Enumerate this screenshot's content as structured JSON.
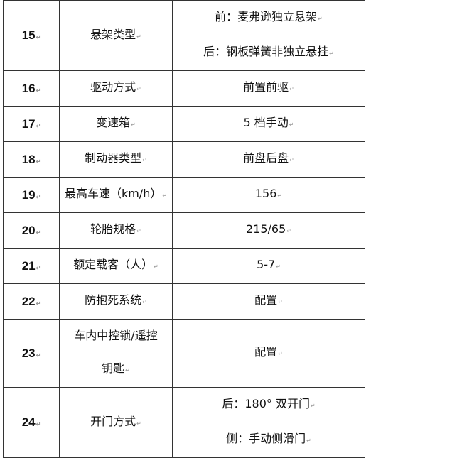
{
  "rows": [
    {
      "no": "15",
      "name": [
        "悬架类型"
      ],
      "value": [
        "前：麦弗逊独立悬架",
        "后：钢板弹簧非独立悬挂"
      ]
    },
    {
      "no": "16",
      "name": [
        "驱动方式"
      ],
      "value": [
        "前置前驱"
      ]
    },
    {
      "no": "17",
      "name": [
        "变速箱"
      ],
      "value": [
        "5 档手动"
      ]
    },
    {
      "no": "18",
      "name": [
        "制动器类型"
      ],
      "value": [
        "前盘后盘"
      ]
    },
    {
      "no": "19",
      "name": [
        "最高车速（km/h）"
      ],
      "value": [
        "156"
      ]
    },
    {
      "no": "20",
      "name": [
        "轮胎规格"
      ],
      "value": [
        "215/65"
      ]
    },
    {
      "no": "21",
      "name": [
        "额定载客（人）"
      ],
      "value": [
        "5-7"
      ]
    },
    {
      "no": "22",
      "name": [
        "防抱死系统"
      ],
      "value": [
        "配置"
      ]
    },
    {
      "no": "23",
      "name": [
        "车内中控锁/遥控",
        "钥匙"
      ],
      "value": [
        "配置"
      ]
    },
    {
      "no": "24",
      "name": [
        "开门方式"
      ],
      "value": [
        "后：180° 双开门",
        "侧：手动侧滑门"
      ]
    }
  ]
}
